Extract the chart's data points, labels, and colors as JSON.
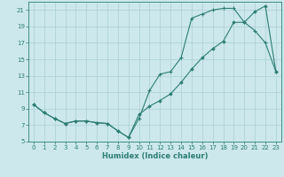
{
  "xlabel": "Humidex (Indice chaleur)",
  "bg_color": "#cce8ec",
  "grid_color": "#aacfd4",
  "line_color": "#2d7d74",
  "xlim": [
    -0.5,
    23.5
  ],
  "ylim": [
    5,
    22
  ],
  "yticks": [
    5,
    7,
    9,
    11,
    13,
    15,
    17,
    19,
    21
  ],
  "xticks": [
    0,
    1,
    2,
    3,
    4,
    5,
    6,
    7,
    8,
    9,
    10,
    11,
    12,
    13,
    14,
    15,
    16,
    17,
    18,
    19,
    20,
    21,
    22,
    23
  ],
  "curve1_x": [
    0,
    1,
    2,
    3,
    4,
    5,
    6,
    7,
    8,
    9,
    10,
    11,
    12,
    13,
    14,
    15,
    16,
    17,
    18,
    19,
    20,
    21,
    22,
    23
  ],
  "curve1_y": [
    9.5,
    8.5,
    7.8,
    7.2,
    7.5,
    7.5,
    7.3,
    7.2,
    6.3,
    5.5,
    7.8,
    11.2,
    13.2,
    13.5,
    15.2,
    20.0,
    20.5,
    21.0,
    21.2,
    21.2,
    19.5,
    18.5,
    17.0,
    13.5
  ],
  "curve2_x": [
    0,
    1,
    2,
    3,
    4,
    5,
    6,
    7,
    8,
    9,
    10,
    11,
    12,
    13,
    14,
    15,
    16,
    17,
    18,
    19,
    20,
    21,
    22,
    23
  ],
  "curve2_y": [
    9.5,
    8.5,
    7.8,
    7.2,
    7.5,
    7.5,
    7.3,
    7.2,
    6.3,
    5.5,
    8.3,
    9.3,
    10.0,
    10.8,
    12.2,
    13.8,
    15.2,
    16.3,
    17.2,
    19.5,
    19.5,
    20.8,
    21.5,
    13.5
  ],
  "tick_fontsize": 5.0,
  "xlabel_fontsize": 6.0,
  "linewidth": 0.8,
  "marker1": "+",
  "marker1_size": 3.0,
  "marker2": "D",
  "marker2_size": 1.8
}
